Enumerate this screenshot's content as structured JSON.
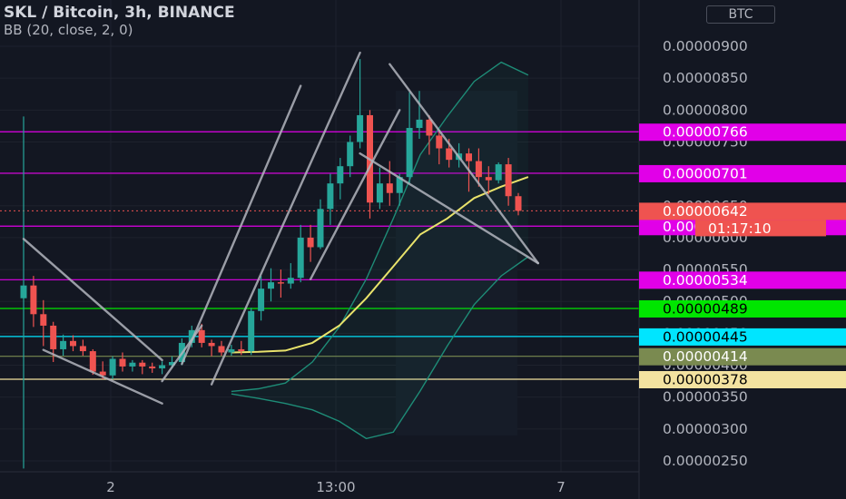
{
  "header": {
    "title": "SKL / Bitcoin, 3h, BINANCE",
    "indicator": "BB (20, close, 2, 0)",
    "currency_button": "BTC"
  },
  "countdown": "01:17:10",
  "colors": {
    "background": "#131722",
    "bull": "#26a69a",
    "bear": "#ef5350",
    "bb_band": "#1e8c77",
    "bb_basis": "#e9e36b",
    "magenta": "#e100e8",
    "green": "#00e600",
    "cyan": "#00e5ff",
    "olive": "#7a8a50",
    "cream": "#f3e2a0",
    "trendline": "#b2b5be"
  },
  "chart_data": {
    "type": "candlestick",
    "title": "SKL / Bitcoin, 3h, BINANCE",
    "x_tick_labels": [
      "2",
      "13:00",
      "7"
    ],
    "y_axis": {
      "min": 2.4e-06,
      "max": 9.2e-06,
      "ticks": [
        2.5e-06,
        3e-06,
        3.5e-06,
        4e-06,
        4.5e-06,
        5e-06,
        5.5e-06,
        6e-06,
        6.5e-06,
        7e-06,
        7.5e-06,
        8e-06,
        8.5e-06,
        9e-06
      ],
      "tick_labels": [
        "0.00000250",
        "0.00000300",
        "0.00000350",
        "0.00000400",
        "0.00000450",
        "0.00000500",
        "0.00000550",
        "0.00000600",
        "0.00000650",
        "0.00000700",
        "0.00000750",
        "0.00000800",
        "0.00000850",
        "0.00000900"
      ]
    },
    "horizontal_levels": [
      {
        "value": 7.66e-06,
        "label": "0.00000766",
        "color": "#e100e8",
        "text_color": "#ffffff"
      },
      {
        "value": 7.01e-06,
        "label": "0.00000701",
        "color": "#e100e8",
        "text_color": "#ffffff"
      },
      {
        "value": 6.18e-06,
        "label": "0.00000618",
        "color": "#e100e8",
        "text_color": "#ffffff"
      },
      {
        "value": 5.34e-06,
        "label": "0.00000534",
        "color": "#e100e8",
        "text_color": "#ffffff"
      },
      {
        "value": 4.89e-06,
        "label": "0.00000489",
        "color": "#00e600",
        "text_color": "#000000"
      },
      {
        "value": 4.45e-06,
        "label": "0.00000445",
        "color": "#00e5ff",
        "text_color": "#000000"
      },
      {
        "value": 4.14e-06,
        "label": "0.00000414",
        "color": "#7a8a50",
        "text_color": "#ffffff"
      },
      {
        "value": 3.78e-06,
        "label": "0.00000378",
        "color": "#f3e2a0",
        "text_color": "#000000"
      }
    ],
    "last_price": {
      "value": 6.42e-06,
      "label": "0.00000642",
      "color": "#ef5350"
    },
    "candles": [
      {
        "o": 5.05,
        "h": 7.9,
        "l": 2.38,
        "c": 5.25
      },
      {
        "o": 5.25,
        "h": 5.4,
        "l": 4.6,
        "c": 4.8
      },
      {
        "o": 4.8,
        "h": 5.02,
        "l": 4.3,
        "c": 4.62
      },
      {
        "o": 4.62,
        "h": 4.68,
        "l": 4.05,
        "c": 4.25
      },
      {
        "o": 4.25,
        "h": 4.48,
        "l": 4.15,
        "c": 4.38
      },
      {
        "o": 4.38,
        "h": 4.47,
        "l": 4.22,
        "c": 4.3
      },
      {
        "o": 4.3,
        "h": 4.4,
        "l": 4.15,
        "c": 4.22
      },
      {
        "o": 4.22,
        "h": 4.25,
        "l": 3.85,
        "c": 3.9
      },
      {
        "o": 3.9,
        "h": 4.06,
        "l": 3.78,
        "c": 3.84
      },
      {
        "o": 3.84,
        "h": 4.14,
        "l": 3.78,
        "c": 4.1
      },
      {
        "o": 4.1,
        "h": 4.2,
        "l": 3.9,
        "c": 3.98
      },
      {
        "o": 3.98,
        "h": 4.08,
        "l": 3.9,
        "c": 4.04
      },
      {
        "o": 4.04,
        "h": 4.08,
        "l": 3.86,
        "c": 3.98
      },
      {
        "o": 3.98,
        "h": 4.04,
        "l": 3.88,
        "c": 3.95
      },
      {
        "o": 3.95,
        "h": 4.06,
        "l": 3.86,
        "c": 4.0
      },
      {
        "o": 4.0,
        "h": 4.14,
        "l": 3.96,
        "c": 4.05
      },
      {
        "o": 4.05,
        "h": 4.42,
        "l": 4.0,
        "c": 4.35
      },
      {
        "o": 4.35,
        "h": 4.62,
        "l": 4.28,
        "c": 4.55
      },
      {
        "o": 4.55,
        "h": 4.65,
        "l": 4.28,
        "c": 4.35
      },
      {
        "o": 4.35,
        "h": 4.4,
        "l": 4.14,
        "c": 4.3
      },
      {
        "o": 4.3,
        "h": 4.38,
        "l": 4.15,
        "c": 4.2
      },
      {
        "o": 4.2,
        "h": 4.32,
        "l": 4.15,
        "c": 4.25
      },
      {
        "o": 4.25,
        "h": 4.38,
        "l": 4.16,
        "c": 4.22
      },
      {
        "o": 4.22,
        "h": 4.9,
        "l": 4.16,
        "c": 4.85
      },
      {
        "o": 4.85,
        "h": 5.4,
        "l": 4.7,
        "c": 5.2
      },
      {
        "o": 5.2,
        "h": 5.52,
        "l": 5.0,
        "c": 5.3
      },
      {
        "o": 5.3,
        "h": 5.5,
        "l": 5.06,
        "c": 5.28
      },
      {
        "o": 5.28,
        "h": 5.6,
        "l": 5.2,
        "c": 5.37
      },
      {
        "o": 5.37,
        "h": 6.2,
        "l": 5.3,
        "c": 6.0
      },
      {
        "o": 6.0,
        "h": 6.2,
        "l": 5.62,
        "c": 5.85
      },
      {
        "o": 5.85,
        "h": 6.6,
        "l": 5.82,
        "c": 6.45
      },
      {
        "o": 6.45,
        "h": 7.0,
        "l": 6.2,
        "c": 6.85
      },
      {
        "o": 6.85,
        "h": 7.25,
        "l": 6.6,
        "c": 7.12
      },
      {
        "o": 7.12,
        "h": 7.6,
        "l": 6.95,
        "c": 7.5
      },
      {
        "o": 7.5,
        "h": 8.8,
        "l": 7.4,
        "c": 7.92
      },
      {
        "o": 7.92,
        "h": 8.0,
        "l": 6.3,
        "c": 6.55
      },
      {
        "o": 6.55,
        "h": 7.1,
        "l": 6.45,
        "c": 6.85
      },
      {
        "o": 6.85,
        "h": 7.2,
        "l": 6.5,
        "c": 6.7
      },
      {
        "o": 6.7,
        "h": 7.0,
        "l": 6.5,
        "c": 6.95
      },
      {
        "o": 6.95,
        "h": 8.28,
        "l": 6.85,
        "c": 7.72
      },
      {
        "o": 7.72,
        "h": 8.3,
        "l": 7.55,
        "c": 7.85
      },
      {
        "o": 7.85,
        "h": 7.92,
        "l": 7.3,
        "c": 7.6
      },
      {
        "o": 7.6,
        "h": 7.68,
        "l": 7.15,
        "c": 7.4
      },
      {
        "o": 7.4,
        "h": 7.55,
        "l": 7.1,
        "c": 7.22
      },
      {
        "o": 7.22,
        "h": 7.48,
        "l": 7.1,
        "c": 7.32
      },
      {
        "o": 7.32,
        "h": 7.4,
        "l": 6.72,
        "c": 7.2
      },
      {
        "o": 7.2,
        "h": 7.4,
        "l": 6.8,
        "c": 6.95
      },
      {
        "o": 6.95,
        "h": 7.12,
        "l": 6.68,
        "c": 6.9
      },
      {
        "o": 6.9,
        "h": 7.18,
        "l": 6.85,
        "c": 7.15
      },
      {
        "o": 7.15,
        "h": 7.25,
        "l": 6.5,
        "c": 6.65
      },
      {
        "o": 6.65,
        "h": 6.7,
        "l": 6.35,
        "c": 6.42
      }
    ],
    "bollinger": {
      "upper": [
        [
          6.4,
          3.58
        ],
        [
          6.6,
          3.48
        ],
        [
          6.9,
          3.72
        ],
        [
          7.3,
          4.22
        ],
        [
          7.9,
          4.92
        ],
        [
          8.4,
          5.82
        ],
        [
          8.7,
          6.92
        ],
        [
          8.9,
          7.82
        ],
        [
          8.8,
          8.32
        ],
        [
          8.6,
          8.72
        ],
        [
          8.4,
          9.22
        ],
        [
          8.1,
          9.92
        ]
      ],
      "upper_values": [
        3.59,
        3.63,
        3.72,
        4.05,
        4.6,
        5.35,
        6.3,
        7.3,
        7.9,
        8.45,
        8.75,
        8.55
      ],
      "basis_values": [
        4.2,
        4.21,
        4.23,
        4.35,
        4.62,
        5.05,
        5.55,
        6.05,
        6.3,
        6.62,
        6.8,
        6.95
      ],
      "lower_values": [
        3.55,
        3.48,
        3.4,
        3.3,
        3.12,
        2.85,
        2.95,
        3.6,
        4.3,
        4.95,
        5.4,
        5.7
      ]
    },
    "trendlines": [
      {
        "from": [
          0,
          5.98
        ],
        "to": [
          14,
          4.08
        ]
      },
      {
        "from": [
          2,
          4.24
        ],
        "to": [
          14,
          3.4
        ]
      },
      {
        "from": [
          14,
          3.75
        ],
        "to": [
          18,
          4.62
        ]
      },
      {
        "from": [
          16,
          4.02
        ],
        "to": [
          28,
          8.38
        ]
      },
      {
        "from": [
          19,
          3.7
        ],
        "to": [
          34,
          8.9
        ]
      },
      {
        "from": [
          29,
          5.35
        ],
        "to": [
          38,
          8.0
        ]
      },
      {
        "from": [
          37,
          8.72
        ],
        "to": [
          52,
          5.6
        ]
      },
      {
        "from": [
          34,
          7.32
        ],
        "to": [
          52,
          5.6
        ]
      }
    ]
  }
}
